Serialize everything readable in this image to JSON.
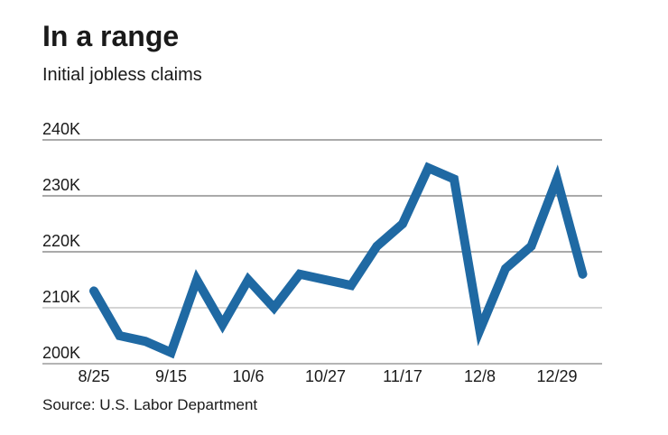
{
  "chart_data": {
    "type": "line",
    "title": "In a range",
    "subtitle": "Initial jobless claims",
    "source": "Source: U.S. Labor Department",
    "xlabel": "",
    "ylabel": "",
    "ylim": [
      200,
      240
    ],
    "yticks": [
      200,
      210,
      220,
      230,
      240
    ],
    "ytick_labels": [
      "200K",
      "210K",
      "220K",
      "230K",
      "240K"
    ],
    "xtick_labels": [
      "8/25",
      "9/15",
      "10/6",
      "10/27",
      "11/17",
      "12/8",
      "12/29"
    ],
    "xtick_indices": [
      0,
      3,
      6,
      9,
      12,
      15,
      18
    ],
    "grid": true,
    "color": "#1f69a3",
    "series": [
      {
        "name": "Initial jobless claims (thousands)",
        "x": [
          "8/25",
          "9/1",
          "9/8",
          "9/15",
          "9/22",
          "9/29",
          "10/6",
          "10/13",
          "10/20",
          "10/27",
          "11/3",
          "11/10",
          "11/17",
          "11/24",
          "12/1",
          "12/8",
          "12/15",
          "12/22",
          "12/29",
          "1/5"
        ],
        "values": [
          213,
          205,
          204,
          202,
          215,
          207,
          215,
          210,
          216,
          215,
          214,
          221,
          225,
          235,
          233,
          206,
          217,
          221,
          233,
          216
        ]
      }
    ]
  }
}
